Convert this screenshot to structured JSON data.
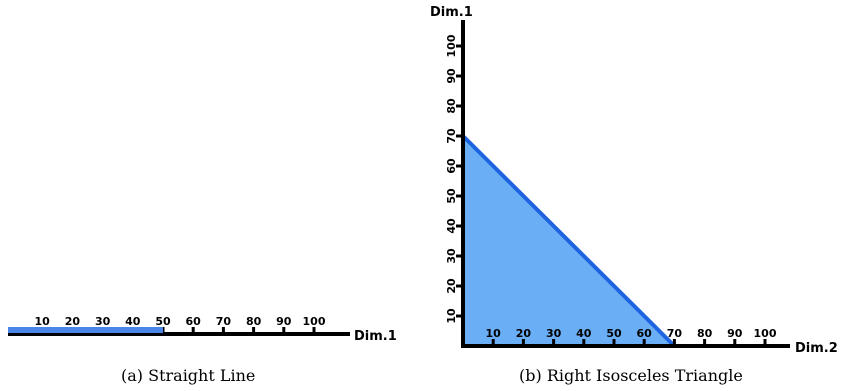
{
  "colors": {
    "axis": "#000000",
    "highlight_stroke": "#1e63e0",
    "highlight_fill": "#6aaef6",
    "line_segment": "#4a86e8"
  },
  "panels": [
    {
      "caption": "(a) Straight Line",
      "x_axis_label": "Dim.1",
      "tick_labels": [
        "10",
        "20",
        "30",
        "40",
        "50",
        "60",
        "70",
        "80",
        "90",
        "100"
      ]
    },
    {
      "caption": "(b) Right Isosceles Triangle",
      "x_axis_label": "Dim.2",
      "y_axis_label": "Dim.1",
      "x_tick_labels": [
        "10",
        "20",
        "30",
        "40",
        "50",
        "60",
        "70",
        "80",
        "90",
        "100"
      ],
      "y_tick_labels": [
        "10",
        "20",
        "30",
        "40",
        "50",
        "60",
        "70",
        "80",
        "90",
        "100"
      ]
    }
  ],
  "chart_data": [
    {
      "type": "line",
      "segment": {
        "from": 0,
        "to": 50
      },
      "xlim": [
        0,
        110
      ],
      "ticks": [
        10,
        20,
        30,
        40,
        50,
        60,
        70,
        80,
        90,
        100
      ]
    },
    {
      "type": "area",
      "polygon": [
        [
          0,
          0
        ],
        [
          70,
          0
        ],
        [
          0,
          70
        ]
      ],
      "xlim": [
        0,
        110
      ],
      "ylim": [
        0,
        105
      ],
      "ticks": [
        10,
        20,
        30,
        40,
        50,
        60,
        70,
        80,
        90,
        100
      ]
    }
  ]
}
